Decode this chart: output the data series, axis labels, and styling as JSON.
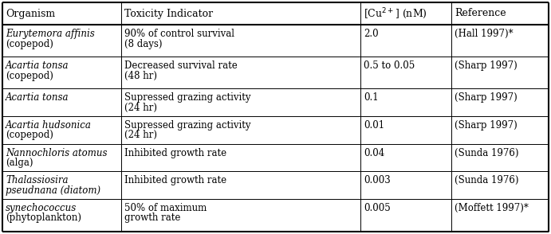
{
  "col_headers": [
    "Organism",
    "Toxicity Indicator",
    "[Cu$^{2+}$] (nM)",
    "Reference"
  ],
  "rows": [
    {
      "org_italic": "Eurytemora affinis",
      "org_extra": "(copepod)",
      "toxicity": [
        "90% of control survival",
        "(8 days)"
      ],
      "cu": "2.0",
      "reference": "(Hall 1997)*"
    },
    {
      "org_italic": "Acartia tonsa",
      "org_extra": "(copepod)",
      "toxicity": [
        "Decreased survival rate",
        "(48 hr)"
      ],
      "cu": "0.5 to 0.05",
      "reference": "(Sharp 1997)"
    },
    {
      "org_italic": "Acartia tonsa",
      "org_extra": "",
      "toxicity": [
        "Supressed grazing activity",
        "(24 hr)"
      ],
      "cu": "0.1",
      "reference": "(Sharp 1997)"
    },
    {
      "org_italic": "Acartia hudsonica",
      "org_extra": "(copepod)",
      "toxicity": [
        "Supressed grazing activity",
        "(24 hr)"
      ],
      "cu": "0.01",
      "reference": "(Sharp 1997)"
    },
    {
      "org_italic": "Nannochloris atomus",
      "org_extra": "(alga)",
      "toxicity": [
        "Inhibited growth rate"
      ],
      "cu": "0.04",
      "reference": "(Sunda 1976)"
    },
    {
      "org_italic": "Thalassiosira",
      "org_extra2": "pseudnana",
      "org_extra": "(diatom)",
      "toxicity": [
        "Inhibited growth rate"
      ],
      "cu": "0.003",
      "reference": "(Sunda 1976)"
    },
    {
      "org_italic": "synechococcus",
      "org_extra": "(phytoplankton)",
      "toxicity": [
        "50% of maximum",
        "growth rate"
      ],
      "cu": "0.005",
      "reference": "(Moffett 1997)*"
    }
  ],
  "bg_color": "#ffffff",
  "border_color": "#000000",
  "thick_lw": 1.5,
  "thin_lw": 0.7,
  "header_fontsize": 9.0,
  "cell_fontsize": 8.5,
  "font_family": "serif"
}
